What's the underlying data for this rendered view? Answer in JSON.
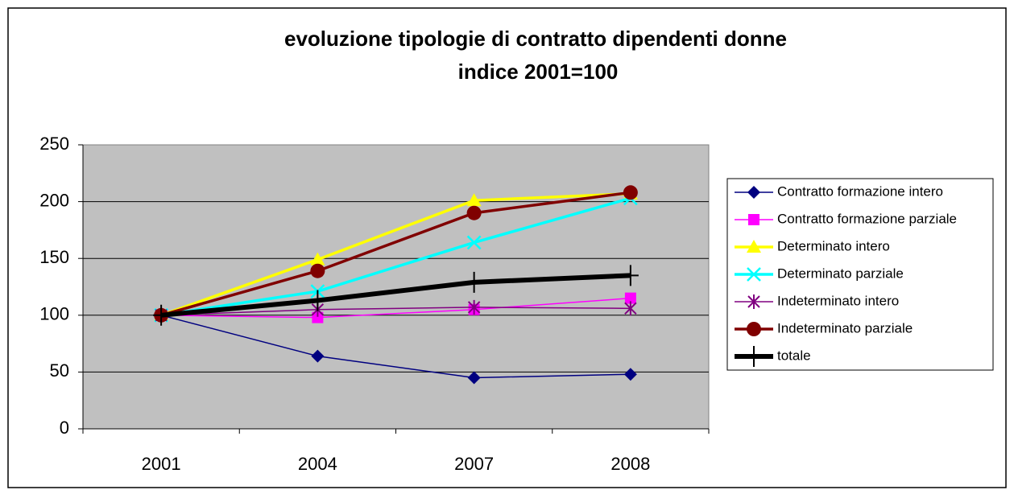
{
  "chart_data": {
    "type": "line",
    "title": [
      "evoluzione tipologie di contratto dipendenti donne",
      "indice 2001=100"
    ],
    "categories": [
      "2001",
      "2004",
      "2007",
      "2008"
    ],
    "series": [
      {
        "name": "Contratto formazione intero",
        "color": "#000080",
        "marker": "diamond",
        "line_width": 1.5,
        "values": [
          100,
          64,
          45,
          48
        ]
      },
      {
        "name": "Contratto formazione parziale",
        "color": "#ff00ff",
        "marker": "square",
        "line_width": 1.5,
        "values": [
          100,
          98,
          105,
          115
        ]
      },
      {
        "name": "Determinato intero",
        "color": "#ffff00",
        "marker": "triangle",
        "line_width": 3.5,
        "values": [
          100,
          149,
          201,
          207
        ]
      },
      {
        "name": "Determinato parziale",
        "color": "#00ffff",
        "marker": "x",
        "line_width": 3.5,
        "values": [
          100,
          121,
          164,
          203
        ]
      },
      {
        "name": "Indeterminato intero",
        "color": "#800080",
        "marker": "asterisk",
        "line_width": 1.5,
        "values": [
          100,
          105,
          107,
          106
        ]
      },
      {
        "name": "Indeterminato parziale",
        "color": "#800000",
        "marker": "circle",
        "line_width": 3.5,
        "values": [
          100,
          139,
          190,
          208
        ]
      },
      {
        "name": "totale",
        "color": "#000000",
        "marker": "plus",
        "line_width": 6,
        "values": [
          100,
          113,
          129,
          135
        ]
      }
    ],
    "ylim": [
      0,
      250
    ],
    "yticks": [
      0,
      50,
      100,
      150,
      200,
      250
    ],
    "grid": true,
    "legend": "right"
  }
}
